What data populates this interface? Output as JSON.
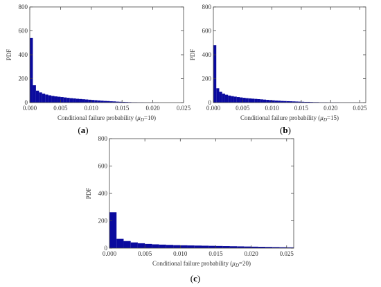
{
  "colors": {
    "bar": "#0a0a9e",
    "frame": "#444444",
    "text": "#333333"
  },
  "chart_data": [
    {
      "type": "bar",
      "panel_label": "(a)",
      "panel_letter": "a",
      "xlabel_prefix": "Conditional failure probability (",
      "xlabel_mu": "μ",
      "xlabel_sub": "D",
      "xlabel_suffix": "=10)",
      "ylabel": "PDF",
      "xlim": [
        0,
        0.025
      ],
      "ylim": [
        0,
        800
      ],
      "xticks": [
        "0.000",
        "0.005",
        "0.010",
        "0.015",
        "0.020",
        "0.025"
      ],
      "yticks": [
        "0",
        "200",
        "400",
        "600",
        "800"
      ],
      "bin_width": 0.0005,
      "values": [
        540,
        145,
        100,
        85,
        75,
        67,
        61,
        56,
        52,
        49,
        46,
        43,
        40,
        37,
        35,
        32,
        30,
        28,
        26,
        24,
        22,
        20,
        18,
        16,
        14,
        13,
        11,
        10,
        8,
        7,
        6,
        5,
        4,
        3,
        3,
        2,
        2,
        1,
        1,
        1,
        1,
        1,
        0,
        0,
        0,
        0,
        0,
        0,
        0,
        0
      ]
    },
    {
      "type": "bar",
      "panel_label": "(b)",
      "panel_letter": "b",
      "xlabel_prefix": "Conditional failure probability (",
      "xlabel_mu": "μ",
      "xlabel_sub": "D",
      "xlabel_suffix": "=15)",
      "ylabel": "PDF",
      "xlim": [
        0,
        0.026
      ],
      "ylim": [
        0,
        800
      ],
      "xticks": [
        "0.000",
        "0.005",
        "0.010",
        "0.015",
        "0.020",
        "0.025"
      ],
      "yticks": [
        "0",
        "200",
        "400",
        "600",
        "800"
      ],
      "bin_width": 0.0005,
      "values": [
        480,
        120,
        90,
        75,
        66,
        59,
        54,
        50,
        46,
        43,
        40,
        37,
        35,
        33,
        31,
        29,
        27,
        25,
        23,
        21,
        19,
        17,
        16,
        14,
        13,
        12,
        11,
        10,
        9,
        8,
        7,
        6,
        6,
        5,
        4,
        4,
        3,
        3,
        3,
        2,
        2,
        2,
        2,
        1,
        1,
        1,
        1,
        1,
        1,
        1,
        1,
        1
      ]
    },
    {
      "type": "bar",
      "panel_label": "(c)",
      "panel_letter": "c",
      "xlabel_prefix": "Conditional failure probability (",
      "xlabel_mu": "μ",
      "xlabel_sub": "D",
      "xlabel_suffix": "=20)",
      "ylabel": "PDF",
      "xlim": [
        0,
        0.026
      ],
      "ylim": [
        0,
        800
      ],
      "xticks": [
        "0.000",
        "0.005",
        "0.010",
        "0.015",
        "0.020",
        "0.025"
      ],
      "yticks": [
        "0",
        "200",
        "400",
        "600",
        "800"
      ],
      "bin_width": 0.001,
      "values": [
        262,
        68,
        52,
        42,
        36,
        31,
        28,
        26,
        24,
        22,
        21,
        20,
        19,
        18,
        17,
        16,
        15,
        14,
        13,
        12,
        11,
        10,
        9,
        8,
        7,
        6
      ]
    }
  ]
}
